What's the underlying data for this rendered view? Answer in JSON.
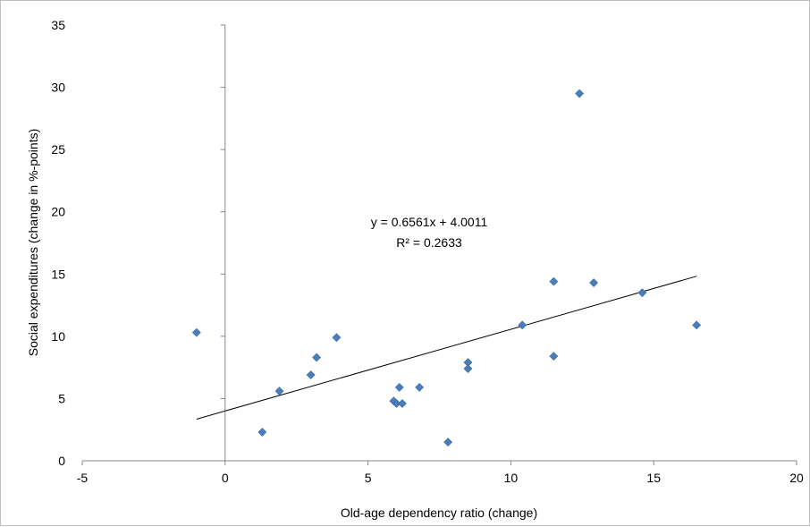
{
  "chart_data": {
    "type": "scatter",
    "title": "",
    "xlabel": "Old-age dependency  ratio (change)",
    "ylabel": "Social expenditures (change in %-points)",
    "xlim": [
      -5,
      20
    ],
    "ylim": [
      0,
      35
    ],
    "xticks": [
      "-5",
      "0",
      "5",
      "10",
      "15",
      "20"
    ],
    "yticks": [
      "0",
      "5",
      "10",
      "15",
      "20",
      "25",
      "30",
      "35"
    ],
    "grid": false,
    "legend": "none",
    "marker_color": "#4a7ebb",
    "trendline_color": "#000000",
    "points": [
      {
        "x": -1.0,
        "y": 10.3
      },
      {
        "x": 1.3,
        "y": 2.3
      },
      {
        "x": 1.9,
        "y": 5.6
      },
      {
        "x": 3.0,
        "y": 6.9
      },
      {
        "x": 3.2,
        "y": 8.3
      },
      {
        "x": 3.9,
        "y": 9.9
      },
      {
        "x": 5.9,
        "y": 4.8
      },
      {
        "x": 6.0,
        "y": 4.6
      },
      {
        "x": 6.1,
        "y": 5.9
      },
      {
        "x": 6.2,
        "y": 4.6
      },
      {
        "x": 6.8,
        "y": 5.9
      },
      {
        "x": 7.8,
        "y": 1.5
      },
      {
        "x": 8.5,
        "y": 7.9
      },
      {
        "x": 8.5,
        "y": 7.4
      },
      {
        "x": 10.4,
        "y": 10.9
      },
      {
        "x": 11.5,
        "y": 14.4
      },
      {
        "x": 11.5,
        "y": 8.4
      },
      {
        "x": 12.4,
        "y": 29.5
      },
      {
        "x": 12.9,
        "y": 14.3
      },
      {
        "x": 14.6,
        "y": 13.5
      },
      {
        "x": 16.5,
        "y": 10.9
      }
    ],
    "trendline": {
      "slope": 0.6561,
      "intercept": 4.0011,
      "x_range": [
        -1.0,
        16.5
      ],
      "equation_label": "y = 0.6561x + 4.0011",
      "r2_label": "R² = 0.2633"
    }
  }
}
